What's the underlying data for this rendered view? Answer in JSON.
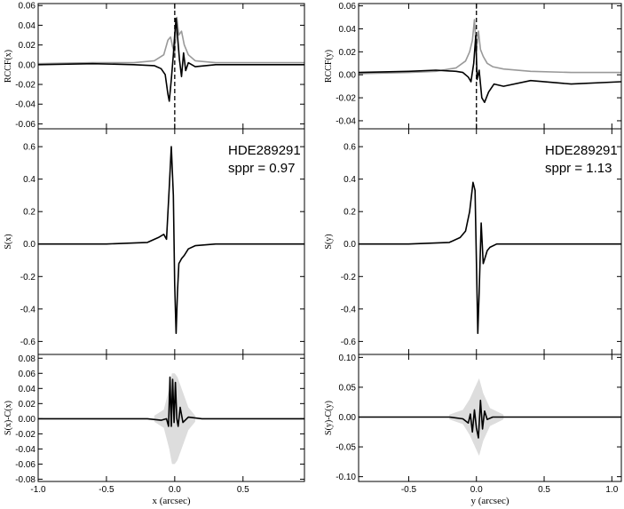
{
  "chart_data": [
    {
      "id": "tl",
      "type": "line",
      "ylabel": "RCCF(x)",
      "xlim": [
        -1.0,
        0.95
      ],
      "ylim": [
        -0.065,
        0.062
      ],
      "yticks": [
        0.06,
        0.04,
        0.02,
        0.0,
        -0.02,
        -0.04,
        -0.06
      ],
      "yticklabels": [
        "0.06",
        "0.04",
        "0.02",
        "0.00",
        "-0.02",
        "-0.04",
        "-0.06"
      ],
      "vline_x": 0.0,
      "series": [
        {
          "color": "#999999",
          "x": [
            -1.0,
            -0.6,
            -0.3,
            -0.15,
            -0.08,
            -0.05,
            -0.03,
            -0.015,
            0.0,
            0.015,
            0.03,
            0.05,
            0.07,
            0.1,
            0.15,
            0.3,
            0.6,
            0.95
          ],
          "y": [
            0.001,
            0.002,
            0.002,
            0.004,
            0.01,
            0.025,
            0.028,
            0.018,
            0.012,
            0.048,
            0.03,
            0.034,
            0.02,
            0.01,
            0.004,
            0.002,
            0.002,
            0.002
          ]
        },
        {
          "color": "#000000",
          "x": [
            -1.0,
            -0.6,
            -0.3,
            -0.15,
            -0.1,
            -0.07,
            -0.05,
            -0.04,
            -0.025,
            -0.01,
            0.0,
            0.01,
            0.02,
            0.035,
            0.05,
            0.065,
            0.08,
            0.1,
            0.15,
            0.3,
            0.6,
            0.95
          ],
          "y": [
            0.0,
            0.001,
            0.0,
            -0.001,
            -0.004,
            -0.01,
            -0.03,
            -0.037,
            -0.015,
            0.01,
            0.03,
            0.047,
            0.03,
            0.005,
            -0.012,
            0.012,
            -0.006,
            0.002,
            -0.002,
            0.0,
            0.0,
            0.0
          ]
        }
      ]
    },
    {
      "id": "tr",
      "type": "line",
      "ylabel": "RCCF(y)",
      "xlim": [
        -0.87,
        1.07
      ],
      "ylim": [
        -0.047,
        0.062
      ],
      "yticks": [
        0.06,
        0.04,
        0.02,
        0.0,
        -0.02,
        -0.04
      ],
      "yticklabels": [
        "0.06",
        "0.04",
        "0.02",
        "0.00",
        "-0.02",
        "-0.04"
      ],
      "vline_x": 0.0,
      "series": [
        {
          "color": "#999999",
          "x": [
            -0.87,
            -0.5,
            -0.3,
            -0.15,
            -0.08,
            -0.05,
            -0.03,
            -0.015,
            0.0,
            0.015,
            0.03,
            0.05,
            0.08,
            0.12,
            0.2,
            0.4,
            0.7,
            1.07
          ],
          "y": [
            0.001,
            0.002,
            0.003,
            0.006,
            0.012,
            0.02,
            0.03,
            0.048,
            0.02,
            0.038,
            0.022,
            0.016,
            0.01,
            0.007,
            0.005,
            0.003,
            0.002,
            0.002
          ]
        },
        {
          "color": "#000000",
          "x": [
            -0.87,
            -0.5,
            -0.3,
            -0.15,
            -0.1,
            -0.06,
            -0.04,
            -0.02,
            -0.005,
            0.005,
            0.02,
            0.04,
            0.06,
            0.09,
            0.13,
            0.2,
            0.4,
            0.7,
            1.07
          ],
          "y": [
            0.002,
            0.003,
            0.004,
            0.003,
            0.002,
            -0.002,
            -0.006,
            0.01,
            0.034,
            -0.004,
            0.004,
            -0.02,
            -0.024,
            -0.015,
            -0.008,
            -0.01,
            -0.005,
            -0.008,
            -0.006
          ]
        }
      ]
    },
    {
      "id": "ml",
      "type": "line",
      "ylabel": "S(x)",
      "xlim": [
        -1.0,
        0.95
      ],
      "ylim": [
        -0.68,
        0.71
      ],
      "yticks": [
        0.6,
        0.4,
        0.2,
        0.0,
        -0.2,
        -0.4,
        -0.6
      ],
      "yticklabels": [
        "0.6",
        "0.4",
        "0.2",
        "0.0",
        "-0.2",
        "-0.4",
        "-0.6"
      ],
      "annotations": [
        "HDE289291",
        "sppr = 0.97"
      ],
      "series": [
        {
          "color": "#000000",
          "x": [
            -1.0,
            -0.5,
            -0.2,
            -0.12,
            -0.08,
            -0.06,
            -0.04,
            -0.025,
            -0.01,
            0.0,
            0.01,
            0.02,
            0.03,
            0.05,
            0.07,
            0.1,
            0.15,
            0.3,
            0.6,
            0.95
          ],
          "y": [
            0.0,
            0.0,
            0.01,
            0.04,
            0.06,
            0.03,
            0.35,
            0.6,
            0.3,
            -0.25,
            -0.55,
            -0.3,
            -0.12,
            -0.09,
            -0.07,
            -0.03,
            -0.01,
            0.0,
            0.0,
            0.0
          ]
        }
      ]
    },
    {
      "id": "mr",
      "type": "line",
      "ylabel": "S(y)",
      "xlim": [
        -0.87,
        1.07
      ],
      "ylim": [
        -0.68,
        0.71
      ],
      "yticks": [
        0.6,
        0.4,
        0.2,
        0.0,
        -0.2,
        -0.4,
        -0.6
      ],
      "yticklabels": [
        "0.6",
        "0.4",
        "0.2",
        "0.0",
        "-0.2",
        "-0.4",
        "-0.6"
      ],
      "annotations": [
        "HDE289291",
        "sppr = 1.13"
      ],
      "series": [
        {
          "color": "#000000",
          "x": [
            -0.87,
            -0.5,
            -0.2,
            -0.12,
            -0.08,
            -0.05,
            -0.025,
            -0.01,
            0.0,
            0.01,
            0.02,
            0.035,
            0.05,
            0.065,
            0.08,
            0.1,
            0.15,
            0.3,
            0.6,
            1.07
          ],
          "y": [
            0.0,
            0.0,
            0.01,
            0.04,
            0.08,
            0.2,
            0.38,
            0.33,
            -0.1,
            -0.55,
            -0.3,
            0.13,
            -0.12,
            -0.08,
            -0.04,
            -0.02,
            0.0,
            0.0,
            0.0,
            0.0
          ]
        }
      ]
    },
    {
      "id": "bl",
      "type": "line",
      "ylabel": "S(x)-C(x)",
      "xlabel": "x (arcsec)",
      "xlim": [
        -1.0,
        0.95
      ],
      "ylim": [
        -0.083,
        0.085
      ],
      "xticks": [
        -1.0,
        -0.5,
        0.0,
        0.5
      ],
      "xticklabels": [
        "-1.0",
        "-0.5",
        "0.0",
        "0.5"
      ],
      "yticks": [
        0.08,
        0.06,
        0.04,
        0.02,
        0.0,
        -0.02,
        -0.04,
        -0.06,
        -0.08
      ],
      "yticklabels": [
        "0.08",
        "0.06",
        "0.04",
        "0.02",
        "0.00",
        "-0.02",
        "-0.04",
        "-0.06",
        "-0.08"
      ],
      "band": {
        "color": "#dddddd",
        "x": [
          -0.15,
          -0.08,
          -0.04,
          -0.02,
          0.0,
          0.02,
          0.05,
          0.1,
          0.15
        ],
        "amp": [
          0.004,
          0.012,
          0.04,
          0.06,
          0.06,
          0.055,
          0.04,
          0.015,
          0.004
        ]
      },
      "series": [
        {
          "color": "#000000",
          "x": [
            -1.0,
            -0.5,
            -0.2,
            -0.1,
            -0.06,
            -0.045,
            -0.035,
            -0.025,
            -0.015,
            -0.005,
            0.005,
            0.015,
            0.025,
            0.04,
            0.06,
            0.1,
            0.2,
            0.5,
            0.95
          ],
          "y": [
            0.0,
            0.0,
            0.0,
            -0.002,
            0.0,
            -0.01,
            0.055,
            -0.01,
            0.052,
            -0.005,
            0.048,
            0.0,
            -0.01,
            0.015,
            -0.005,
            0.002,
            0.0,
            0.0,
            0.0
          ]
        }
      ]
    },
    {
      "id": "br",
      "type": "line",
      "ylabel": "S(y)-C(y)",
      "xlabel": "y (arcsec)",
      "xlim": [
        -0.87,
        1.07
      ],
      "ylim": [
        -0.108,
        0.105
      ],
      "xticks": [
        -0.5,
        0.0,
        0.5,
        1.0
      ],
      "xticklabels": [
        "-0.5",
        "0.0",
        "0.5",
        "1.0"
      ],
      "yticks": [
        0.1,
        0.05,
        0.0,
        -0.05,
        -0.1
      ],
      "yticklabels": [
        "0.10",
        "0.05",
        "0.00",
        "-0.05",
        "-0.10"
      ],
      "band": {
        "color": "#dddddd",
        "x": [
          -0.2,
          -0.1,
          -0.05,
          -0.02,
          0.02,
          0.05,
          0.1,
          0.2
        ],
        "amp": [
          0.004,
          0.012,
          0.03,
          0.045,
          0.065,
          0.04,
          0.015,
          0.004
        ]
      },
      "series": [
        {
          "color": "#000000",
          "x": [
            -0.87,
            -0.5,
            -0.2,
            -0.1,
            -0.06,
            -0.045,
            -0.03,
            -0.015,
            0.0,
            0.015,
            0.03,
            0.045,
            0.06,
            0.08,
            0.12,
            0.2,
            0.5,
            1.07
          ],
          "y": [
            0.0,
            0.0,
            0.0,
            -0.003,
            -0.01,
            0.005,
            -0.025,
            0.012,
            -0.018,
            -0.035,
            0.028,
            -0.02,
            0.01,
            -0.004,
            0.0,
            0.0,
            0.0,
            0.0
          ]
        }
      ]
    }
  ]
}
